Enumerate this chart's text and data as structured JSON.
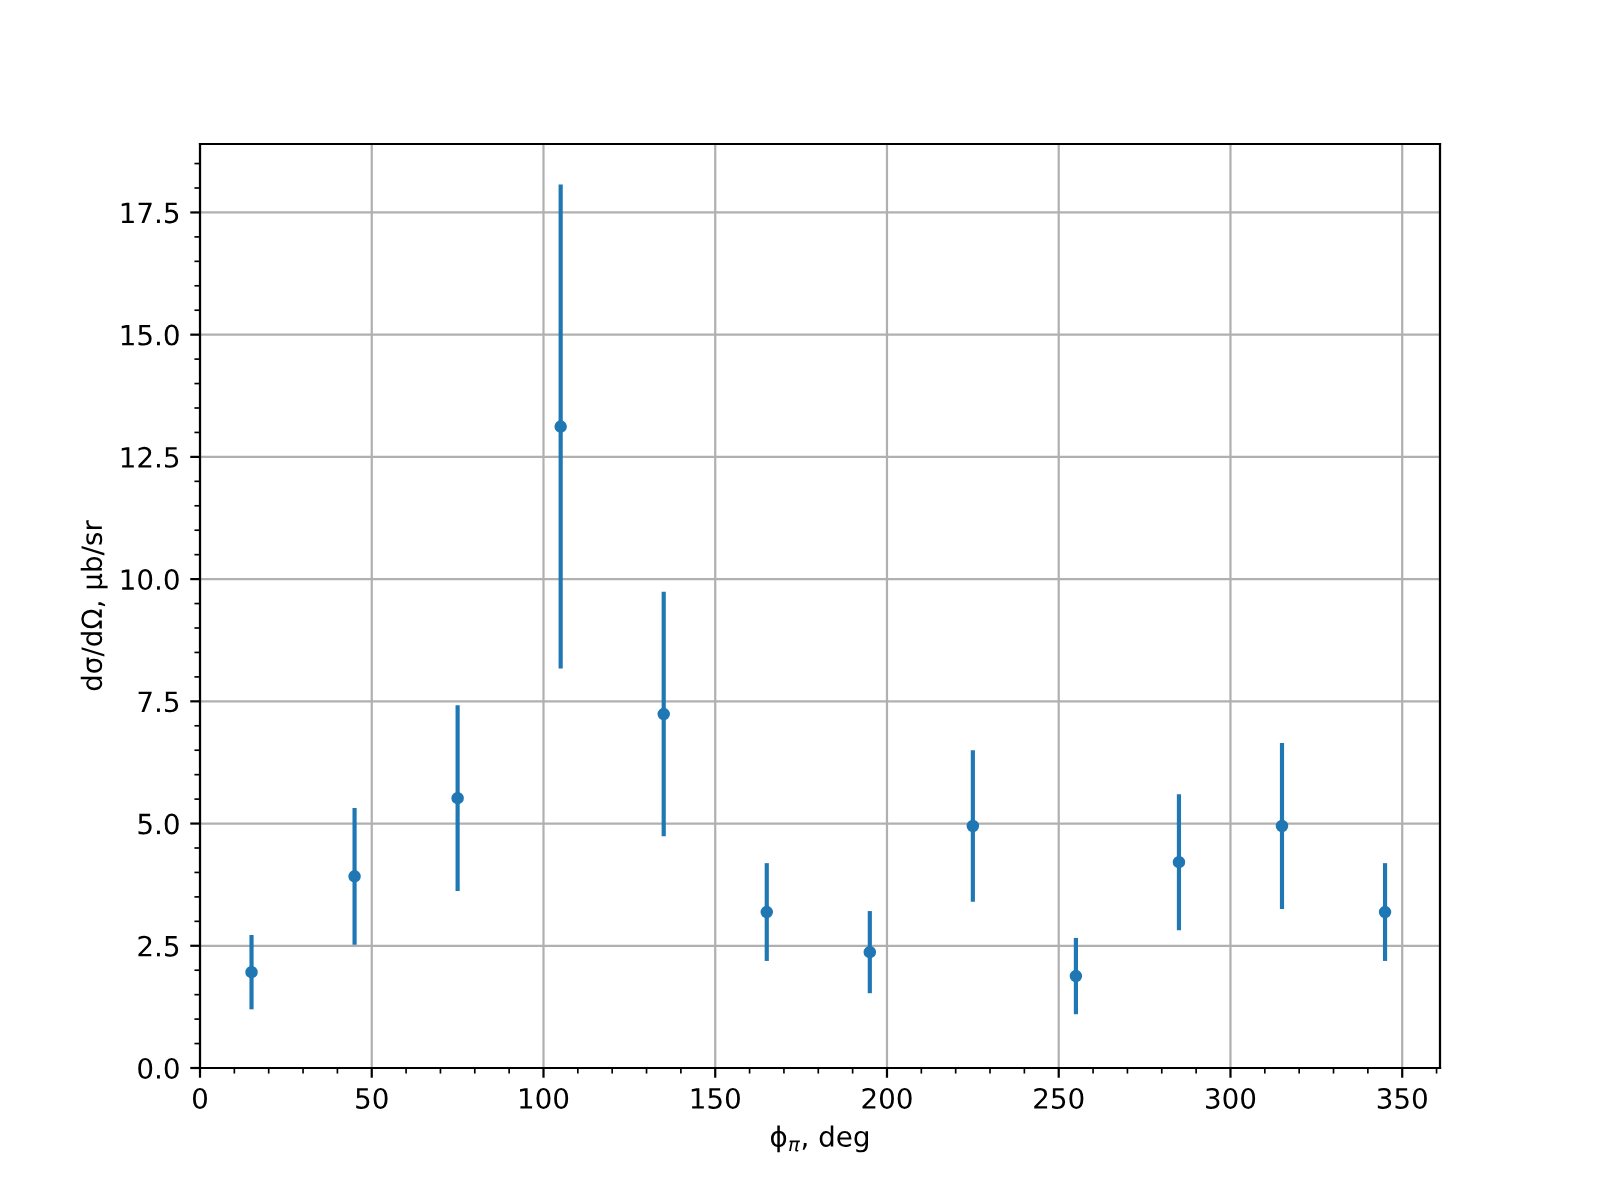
{
  "chart_data": {
    "type": "scatter",
    "xlabel": "ϕ$_{π}$, deg",
    "ylabel": "dσ/dΩ, μb/sr",
    "x": [
      15,
      45,
      75,
      105,
      135,
      165,
      195,
      225,
      255,
      285,
      315,
      345
    ],
    "values": [
      1.96,
      3.92,
      5.52,
      13.12,
      7.24,
      3.19,
      2.37,
      4.95,
      1.88,
      4.21,
      4.95,
      3.19
    ],
    "errors": [
      0.76,
      1.4,
      1.9,
      4.95,
      2.5,
      1.0,
      0.84,
      1.55,
      0.78,
      1.39,
      1.7,
      1.0
    ],
    "color": "#1f77b4",
    "marker": "circle",
    "grid": true,
    "xlim": [
      0,
      361
    ],
    "xticks": [
      0,
      50,
      100,
      150,
      200,
      250,
      300,
      350
    ],
    "ylim": [
      0,
      18.9
    ],
    "yticks": [
      {
        "value": 0,
        "label": "0.0"
      },
      {
        "value": 2.5,
        "label": "2.5"
      },
      {
        "value": 5,
        "label": "5.0"
      },
      {
        "value": 7.5,
        "label": "7.5"
      },
      {
        "value": 10,
        "label": "10.0"
      },
      {
        "value": 12.5,
        "label": "12.5"
      },
      {
        "value": 15,
        "label": "15.0"
      },
      {
        "value": 17.5,
        "label": "17.5"
      }
    ]
  }
}
